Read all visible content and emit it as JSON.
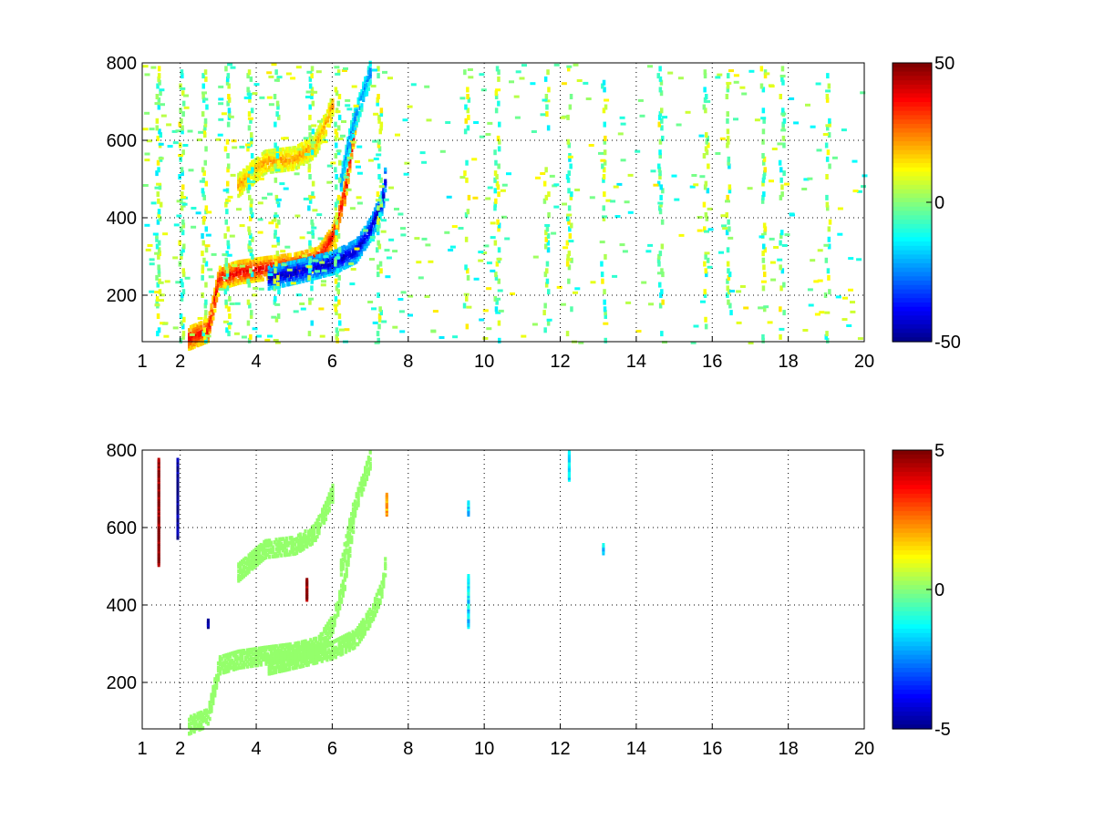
{
  "chart_data": [
    {
      "type": "heatmap",
      "title": "",
      "xlabel": "",
      "ylabel": "",
      "xlim": [
        1,
        20
      ],
      "ylim": [
        80,
        800
      ],
      "x_ticks": [
        1,
        2,
        4,
        6,
        8,
        10,
        12,
        14,
        16,
        18,
        20
      ],
      "y_ticks": [
        200,
        400,
        600,
        800
      ],
      "grid": "dotted",
      "colormap": "jet",
      "colorbar": {
        "min": -50,
        "max": 50,
        "ticks": [
          50,
          0,
          -50
        ]
      },
      "features": {
        "ridges": [
          {
            "points": [
              [
                2.2,
                95
              ],
              [
                2.7,
                115
              ],
              [
                3.0,
                250
              ],
              [
                3.5,
                265
              ],
              [
                4.2,
                275
              ],
              [
                5.0,
                285
              ],
              [
                5.6,
                300
              ],
              [
                6.0,
                360
              ],
              [
                6.3,
                470
              ],
              [
                6.5,
                600
              ],
              [
                6.6,
                680
              ]
            ],
            "value": 40
          },
          {
            "points": [
              [
                4.3,
                250
              ],
              [
                5.2,
                270
              ],
              [
                6.0,
                290
              ],
              [
                6.6,
                320
              ],
              [
                7.0,
                380
              ],
              [
                7.3,
                450
              ],
              [
                7.4,
                540
              ]
            ],
            "value": -45
          },
          {
            "points": [
              [
                3.5,
                490
              ],
              [
                4.2,
                550
              ],
              [
                5.0,
                560
              ],
              [
                5.5,
                590
              ],
              [
                5.8,
                650
              ],
              [
                6.0,
                700
              ]
            ],
            "value": 22
          },
          {
            "points": [
              [
                6.2,
                500
              ],
              [
                6.5,
                640
              ],
              [
                6.8,
                730
              ],
              [
                7.0,
                790
              ]
            ],
            "value": -25
          }
        ],
        "vertical_bands": [
          1.4,
          2.0,
          2.6,
          3.2,
          3.8,
          4.5,
          5.4,
          6.1,
          7.2,
          9.5,
          10.3,
          11.6,
          12.2,
          13.1,
          14.6,
          15.8,
          16.4,
          17.3,
          17.8,
          19.0
        ]
      }
    },
    {
      "type": "heatmap",
      "title": "",
      "xlabel": "",
      "ylabel": "",
      "xlim": [
        1,
        20
      ],
      "ylim": [
        80,
        800
      ],
      "x_ticks": [
        1,
        2,
        4,
        6,
        8,
        10,
        12,
        14,
        16,
        18,
        20
      ],
      "y_ticks": [
        200,
        400,
        600,
        800
      ],
      "grid": "dotted",
      "colormap": "jet",
      "colorbar": {
        "min": -5,
        "max": 5,
        "ticks": [
          5,
          0,
          -5
        ]
      },
      "features": {
        "ridges": [
          {
            "points": [
              [
                2.2,
                95
              ],
              [
                2.7,
                115
              ],
              [
                3.0,
                250
              ],
              [
                3.5,
                265
              ],
              [
                4.2,
                275
              ],
              [
                5.0,
                285
              ],
              [
                5.6,
                300
              ],
              [
                6.0,
                360
              ],
              [
                6.3,
                470
              ],
              [
                6.5,
                600
              ],
              [
                6.6,
                680
              ]
            ],
            "value": 0.2
          },
          {
            "points": [
              [
                4.3,
                250
              ],
              [
                5.2,
                270
              ],
              [
                6.0,
                290
              ],
              [
                6.6,
                320
              ],
              [
                7.0,
                380
              ],
              [
                7.3,
                450
              ],
              [
                7.4,
                540
              ]
            ],
            "value": 0.2
          },
          {
            "points": [
              [
                3.5,
                490
              ],
              [
                4.2,
                550
              ],
              [
                5.0,
                560
              ],
              [
                5.5,
                590
              ],
              [
                5.8,
                650
              ],
              [
                6.0,
                700
              ]
            ],
            "value": 0.2
          },
          {
            "points": [
              [
                6.2,
                500
              ],
              [
                6.5,
                640
              ],
              [
                6.8,
                730
              ],
              [
                7.0,
                790
              ]
            ],
            "value": 0.2
          }
        ],
        "spots": [
          {
            "x": 1.4,
            "y0": 510,
            "y1": 780,
            "value": 5
          },
          {
            "x": 1.9,
            "y0": 580,
            "y1": 780,
            "value": -5
          },
          {
            "x": 5.3,
            "y0": 420,
            "y1": 470,
            "value": 5
          },
          {
            "x": 7.4,
            "y0": 640,
            "y1": 690,
            "value": 2
          },
          {
            "x": 9.55,
            "y0": 640,
            "y1": 670,
            "value": -1.5
          },
          {
            "x": 9.55,
            "y0": 350,
            "y1": 480,
            "value": -1.5
          },
          {
            "x": 12.2,
            "y0": 730,
            "y1": 800,
            "value": -1.5
          },
          {
            "x": 13.1,
            "y0": 540,
            "y1": 560,
            "value": -1.5
          },
          {
            "x": 2.7,
            "y0": 350,
            "y1": 365,
            "value": -5
          }
        ]
      }
    }
  ]
}
